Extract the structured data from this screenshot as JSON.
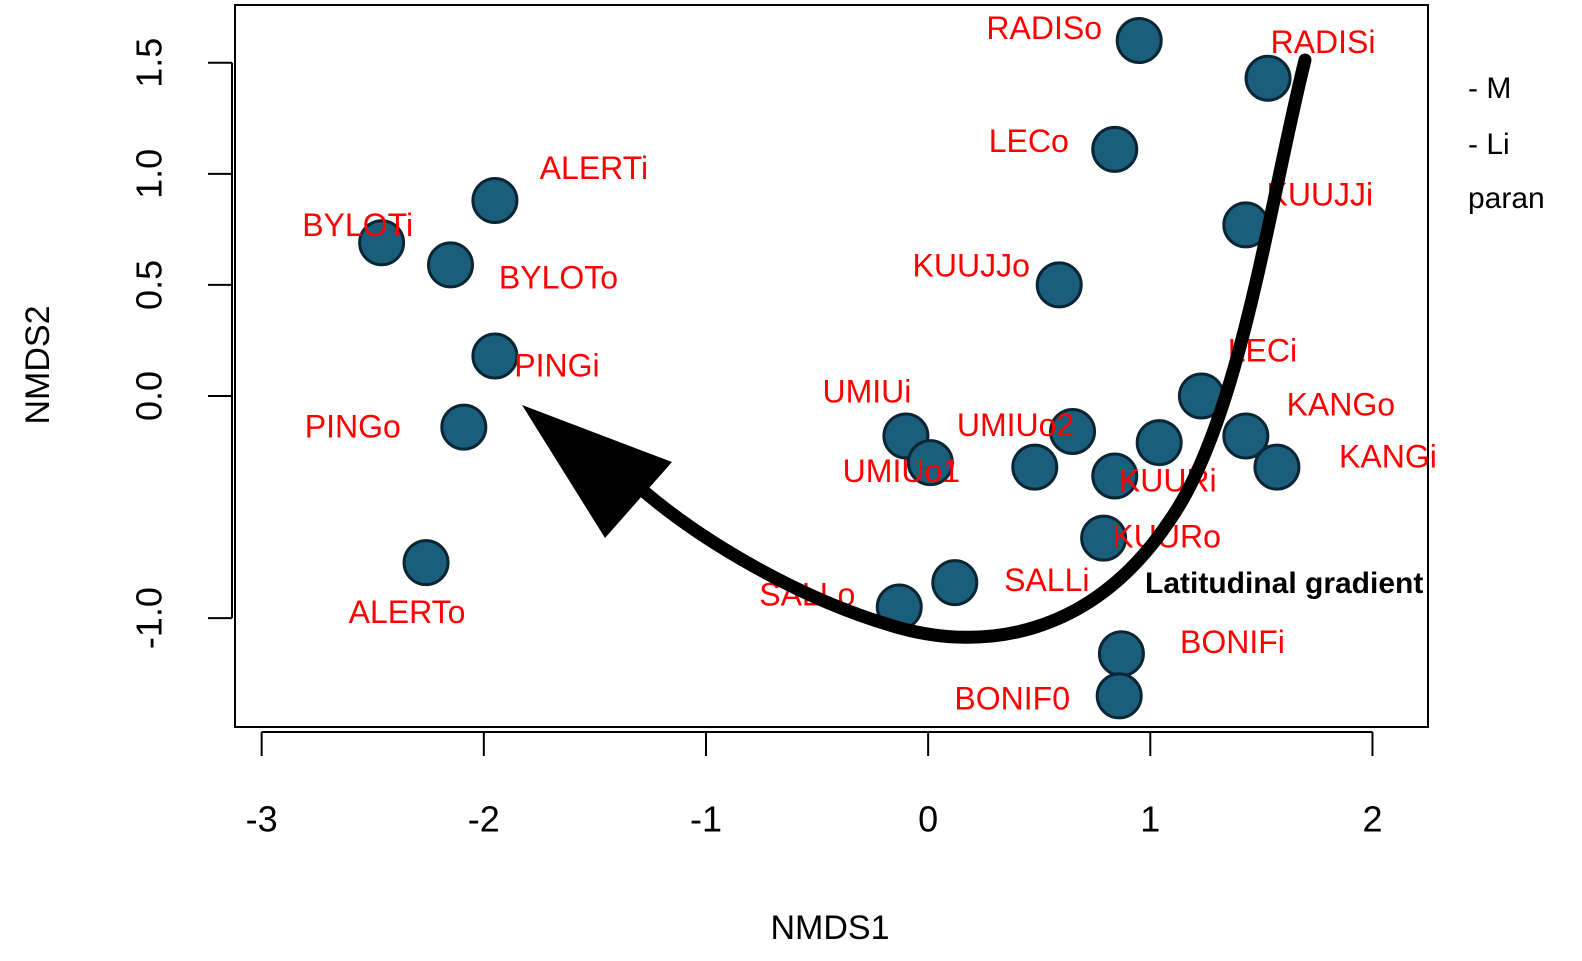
{
  "chart_data": {
    "type": "scatter",
    "xlabel": "NMDS1",
    "ylabel": "NMDS2",
    "xlim": [
      -3.12,
      2.25
    ],
    "ylim": [
      -1.49,
      1.76
    ],
    "xticks": [
      -3,
      -2,
      -1,
      0,
      1,
      2
    ],
    "yticks": [
      {
        "value": -1.0,
        "label": "-1.0"
      },
      {
        "value": 0.0,
        "label": "0.0"
      },
      0.5,
      {
        "value": 1.0,
        "label": "1.0"
      },
      1.5
    ],
    "color": "#1b5e7b",
    "x": [
      0.95,
      1.53,
      0.84,
      -1.95,
      -2.46,
      -2.15,
      1.43,
      0.59,
      -1.95,
      -2.09,
      1.23,
      1.43,
      1.57,
      -0.1,
      0.01,
      0.65,
      0.48,
      1.04,
      0.84,
      0.79,
      0.12,
      -0.13,
      -2.26,
      0.87,
      0.86
    ],
    "values": [
      1.6,
      1.43,
      1.11,
      0.88,
      0.69,
      0.59,
      0.77,
      0.5,
      0.18,
      -0.14,
      0.0,
      -0.18,
      -0.32,
      -0.18,
      -0.3,
      -0.16,
      -0.32,
      -0.21,
      -0.36,
      -0.64,
      -0.84,
      -0.95,
      -0.75,
      -1.16,
      -1.35
    ],
    "labels": [
      "RADISo",
      "RADISi",
      "LECo",
      "ALERTi",
      "BYLOTi",
      "BYLOTo",
      "KUUJJi",
      "KUUJJo",
      "PINGi",
      "PINGo",
      "LECi",
      "KANGo",
      "KANGi",
      "UMIUi",
      "UMIUo1",
      "UMIUo2",
      null,
      null,
      "KUURi",
      "KUURo",
      "SALLi",
      "SALLo",
      "ALERTo",
      "BONIFi",
      "BONIF0"
    ],
    "annotations": [
      "Latitudinal gradient",
      "-    M",
      "-    Li",
      "paran"
    ]
  }
}
